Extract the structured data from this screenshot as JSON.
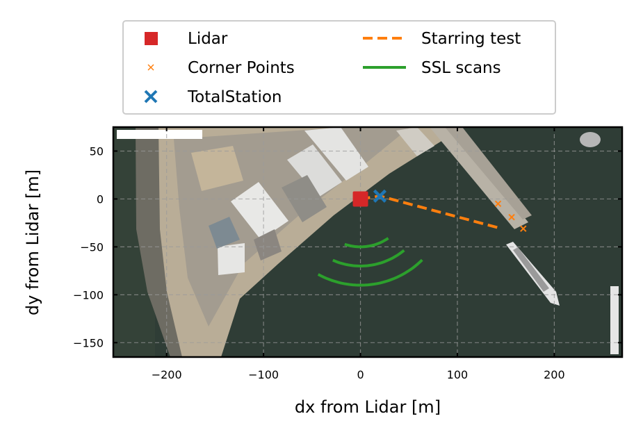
{
  "chart_data": {
    "type": "scatter",
    "xlabel": "dx from Lidar [m]",
    "ylabel": "dy from Lidar [m]",
    "xlim": [
      -255,
      270
    ],
    "ylim": [
      -165,
      75
    ],
    "xticks": [
      -200,
      -100,
      0,
      100,
      200
    ],
    "xtick_labels": [
      "−200",
      "−100",
      "0",
      "100",
      "200"
    ],
    "yticks": [
      50,
      0,
      -50,
      -100,
      -150
    ],
    "ytick_labels": [
      "50",
      "0",
      "−50",
      "−100",
      "−150"
    ],
    "grid": true,
    "legend_position": "above plot",
    "background": "satellite aerial image of harbor",
    "legend": [
      {
        "label": "Lidar",
        "marker": "square",
        "color": "#d62728"
      },
      {
        "label": "Corner Points",
        "marker": "x-small",
        "color": "#ff7f0e"
      },
      {
        "label": "TotalStation",
        "marker": "x-large",
        "color": "#1f77b4"
      },
      {
        "label": "Starring test",
        "marker": "dashed-line",
        "color": "#ff7f0e"
      },
      {
        "label": "SSL scans",
        "marker": "solid-line",
        "color": "#2ca02c"
      }
    ],
    "series": [
      {
        "name": "Lidar",
        "kind": "square",
        "color": "#d62728",
        "points": [
          [
            0,
            0
          ]
        ]
      },
      {
        "name": "Corner Points",
        "kind": "x",
        "color": "#ff7f0e",
        "points": [
          [
            142,
            -5
          ],
          [
            156,
            -19
          ],
          [
            168,
            -31
          ]
        ]
      },
      {
        "name": "TotalStation",
        "kind": "X",
        "color": "#1f77b4",
        "points": [
          [
            20,
            3
          ]
        ]
      },
      {
        "name": "Starring test",
        "kind": "dashed",
        "color": "#ff7f0e",
        "points": [
          [
            0,
            0
          ],
          [
            20,
            3
          ],
          [
            142,
            -30
          ]
        ]
      },
      {
        "name": "SSL scans",
        "kind": "arcs",
        "color": "#2ca02c",
        "arcs": [
          {
            "radius": 50,
            "start_deg": 145,
            "end_deg": 200
          },
          {
            "radius": 70,
            "start_deg": 140,
            "end_deg": 205
          },
          {
            "radius": 90,
            "start_deg": 135,
            "end_deg": 210
          }
        ]
      }
    ]
  }
}
